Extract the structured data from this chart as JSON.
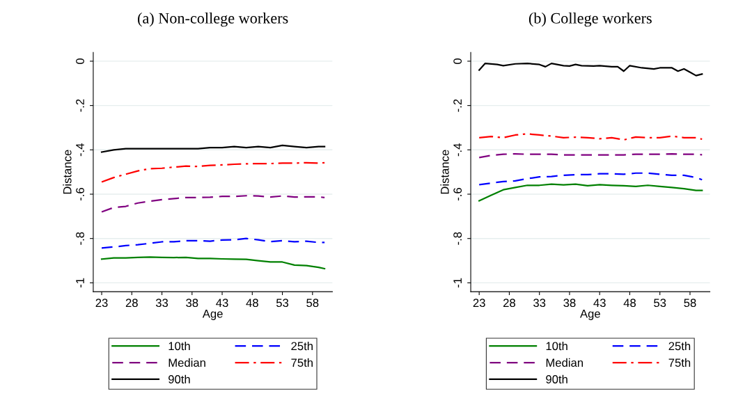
{
  "chart_data": [
    {
      "type": "line",
      "title": "(a) Non-college workers",
      "xlabel": "Age",
      "ylabel": "Distance",
      "xlim": [
        21.6,
        61.3
      ],
      "ylim": [
        -1.04,
        0.04
      ],
      "xticks": [
        23,
        28,
        33,
        38,
        43,
        48,
        53,
        58
      ],
      "yticks": [
        {
          "value": 0,
          "label": "0"
        },
        {
          "value": -0.2,
          "label": "-.2"
        },
        {
          "value": -0.4,
          "label": "-.4"
        },
        {
          "value": -0.6,
          "label": "-.6"
        },
        {
          "value": -0.8,
          "label": "-.8"
        },
        {
          "value": -1,
          "label": "-1"
        }
      ],
      "grid": "y",
      "legend": "bottom",
      "x": [
        23,
        25,
        27,
        29,
        31,
        33,
        35,
        37,
        39,
        41,
        43,
        45,
        47,
        49,
        51,
        53,
        55,
        57,
        59,
        60
      ],
      "series": [
        {
          "name": "10th",
          "color": "#008000",
          "line_style": "solid",
          "values": [
            -0.893,
            -0.888,
            -0.888,
            -0.885,
            -0.884,
            -0.885,
            -0.886,
            -0.885,
            -0.89,
            -0.89,
            -0.892,
            -0.893,
            -0.894,
            -0.9,
            -0.906,
            -0.906,
            -0.92,
            -0.922,
            -0.93,
            -0.936
          ]
        },
        {
          "name": "25th",
          "color": "#0000ff",
          "line_style": "dashed",
          "values": [
            -0.843,
            -0.838,
            -0.832,
            -0.828,
            -0.822,
            -0.815,
            -0.815,
            -0.81,
            -0.81,
            -0.812,
            -0.807,
            -0.806,
            -0.8,
            -0.806,
            -0.814,
            -0.81,
            -0.815,
            -0.812,
            -0.818,
            -0.818
          ]
        },
        {
          "name": "Median",
          "color": "#800080",
          "line_style": "dashed",
          "values": [
            -0.68,
            -0.66,
            -0.655,
            -0.64,
            -0.632,
            -0.625,
            -0.62,
            -0.615,
            -0.615,
            -0.614,
            -0.61,
            -0.61,
            -0.607,
            -0.608,
            -0.613,
            -0.608,
            -0.613,
            -0.612,
            -0.612,
            -0.615
          ]
        },
        {
          "name": "75th",
          "color": "#ff0000",
          "line_style": "dashdot",
          "values": [
            -0.545,
            -0.525,
            -0.51,
            -0.495,
            -0.485,
            -0.483,
            -0.478,
            -0.473,
            -0.475,
            -0.47,
            -0.468,
            -0.465,
            -0.463,
            -0.462,
            -0.462,
            -0.46,
            -0.46,
            -0.458,
            -0.46,
            -0.458
          ]
        },
        {
          "name": "90th",
          "color": "#000000",
          "line_style": "solid",
          "values": [
            -0.41,
            -0.4,
            -0.395,
            -0.395,
            -0.395,
            -0.395,
            -0.395,
            -0.395,
            -0.395,
            -0.39,
            -0.39,
            -0.385,
            -0.39,
            -0.385,
            -0.39,
            -0.38,
            -0.385,
            -0.39,
            -0.385,
            -0.385
          ]
        }
      ]
    },
    {
      "type": "line",
      "title": "(b) College workers",
      "xlabel": "Age",
      "ylabel": "Distance",
      "xlim": [
        21.6,
        61.3
      ],
      "ylim": [
        -1.04,
        0.04
      ],
      "xticks": [
        23,
        28,
        33,
        38,
        43,
        48,
        53,
        58
      ],
      "yticks": [
        {
          "value": 0,
          "label": "0"
        },
        {
          "value": -0.2,
          "label": "-.2"
        },
        {
          "value": -0.4,
          "label": "-.4"
        },
        {
          "value": -0.6,
          "label": "-.6"
        },
        {
          "value": -0.8,
          "label": "-.8"
        },
        {
          "value": -1,
          "label": "-1"
        }
      ],
      "grid": "y",
      "legend": "bottom",
      "x": [
        23,
        25,
        27,
        29,
        31,
        33,
        35,
        37,
        39,
        41,
        43,
        45,
        47,
        49,
        51,
        53,
        55,
        57,
        59,
        60
      ],
      "series": [
        {
          "name": "10th",
          "color": "#008000",
          "line_style": "solid",
          "values": [
            -0.63,
            -0.605,
            -0.58,
            -0.57,
            -0.56,
            -0.56,
            -0.555,
            -0.558,
            -0.555,
            -0.562,
            -0.557,
            -0.56,
            -0.562,
            -0.565,
            -0.56,
            -0.565,
            -0.57,
            -0.575,
            -0.583,
            -0.583
          ]
        },
        {
          "name": "25th",
          "color": "#0000ff",
          "line_style": "dashed",
          "values": [
            -0.557,
            -0.55,
            -0.543,
            -0.54,
            -0.53,
            -0.522,
            -0.52,
            -0.515,
            -0.512,
            -0.512,
            -0.508,
            -0.508,
            -0.51,
            -0.505,
            -0.505,
            -0.51,
            -0.515,
            -0.515,
            -0.525,
            -0.535
          ]
        },
        {
          "name": "Median",
          "color": "#800080",
          "line_style": "dashed",
          "values": [
            -0.435,
            -0.425,
            -0.42,
            -0.418,
            -0.42,
            -0.42,
            -0.42,
            -0.423,
            -0.423,
            -0.423,
            -0.423,
            -0.423,
            -0.423,
            -0.42,
            -0.42,
            -0.42,
            -0.418,
            -0.42,
            -0.42,
            -0.422
          ]
        },
        {
          "name": "75th",
          "color": "#ff0000",
          "line_style": "dashdot",
          "values": [
            -0.345,
            -0.34,
            -0.345,
            -0.333,
            -0.328,
            -0.333,
            -0.338,
            -0.345,
            -0.343,
            -0.345,
            -0.35,
            -0.345,
            -0.355,
            -0.342,
            -0.345,
            -0.345,
            -0.338,
            -0.345,
            -0.345,
            -0.352
          ]
        },
        {
          "name": "90th",
          "color": "#000000",
          "line_style": "solid",
          "x": [
            23,
            24,
            26,
            27,
            29,
            31,
            33,
            34,
            35,
            37,
            38,
            39,
            40,
            42,
            43,
            45,
            46,
            47,
            48,
            50,
            52,
            53,
            55,
            56,
            57,
            58,
            59,
            60
          ],
          "values": [
            -0.04,
            -0.01,
            -0.015,
            -0.02,
            -0.012,
            -0.01,
            -0.015,
            -0.025,
            -0.01,
            -0.02,
            -0.022,
            -0.015,
            -0.02,
            -0.022,
            -0.02,
            -0.025,
            -0.025,
            -0.045,
            -0.02,
            -0.03,
            -0.035,
            -0.03,
            -0.03,
            -0.045,
            -0.035,
            -0.05,
            -0.065,
            -0.058
          ]
        }
      ]
    }
  ]
}
